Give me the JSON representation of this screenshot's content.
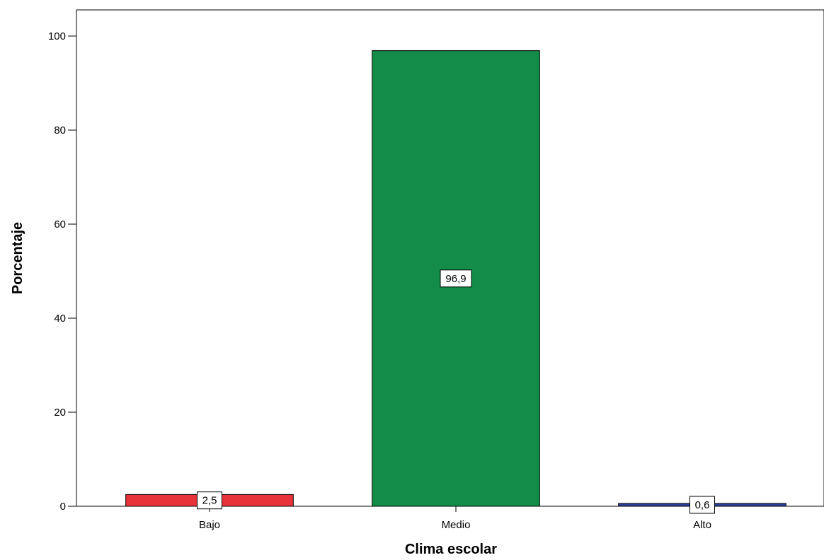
{
  "chart_data": {
    "type": "bar",
    "categories": [
      "Bajo",
      "Medio",
      "Alto"
    ],
    "values": [
      2.5,
      96.9,
      0.6
    ],
    "value_labels": [
      "2,5",
      "96,9",
      "0,6"
    ],
    "colors": [
      "#e8333b",
      "#128c48",
      "#2a3f99"
    ],
    "xlabel": "Clima escolar",
    "ylabel": "Porcentaje",
    "ylim": [
      0,
      100
    ],
    "yticks": [
      0,
      20,
      40,
      60,
      80,
      100
    ],
    "ytick_labels": [
      "0",
      "20",
      "40",
      "60",
      "80",
      "100"
    ],
    "grid": false,
    "legend": "none"
  }
}
